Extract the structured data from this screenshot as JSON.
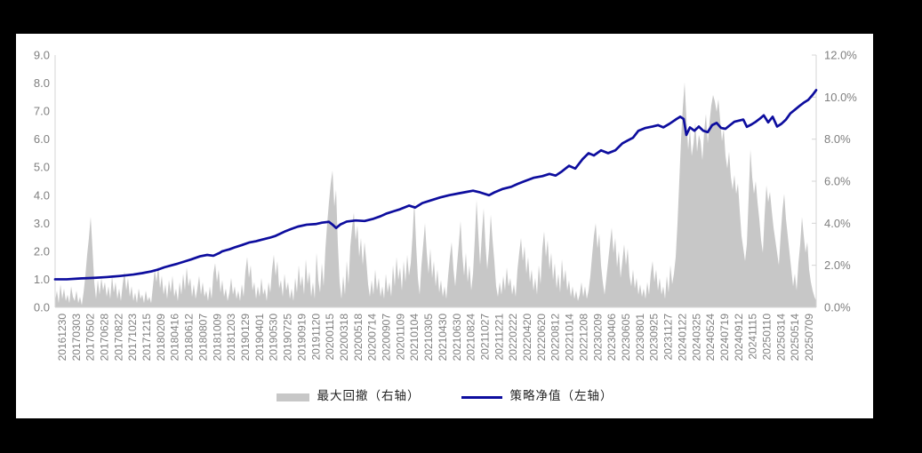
{
  "page": {
    "background_color": "#000000",
    "panel_color": "#ffffff"
  },
  "chart_data": {
    "type": "combo",
    "title": "",
    "grid": "off",
    "legend_position": "bottom-center",
    "legend": [
      {
        "label": "最大回撤（右轴）",
        "swatch": "area",
        "color": "#c7c7c7"
      },
      {
        "label": "策略净值（左轴）",
        "swatch": "line",
        "color": "#0d0d9e"
      }
    ],
    "left_axis": {
      "range": [
        0,
        9
      ],
      "tick_labels_top_to_bottom": [
        "9.0",
        "8.0",
        "7.0",
        "6.0",
        "5.0",
        "4.0",
        "3.0",
        "2.0",
        "1.0",
        "0.0"
      ],
      "label_color": "#7f7f7f"
    },
    "right_axis": {
      "range": [
        0,
        12
      ],
      "unit": "%",
      "tick_labels_top_to_bottom": [
        "12.0%",
        "10.0%",
        "8.0%",
        "6.0%",
        "4.0%",
        "2.0%",
        "0.0%"
      ],
      "label_color": "#7f7f7f"
    },
    "x_labels": [
      "20161230",
      "20170303",
      "20170502",
      "20170628",
      "20170822",
      "20171023",
      "20171215",
      "20180209",
      "20180416",
      "20180612",
      "20180807",
      "20181009",
      "20181203",
      "20190129",
      "20190401",
      "20190530",
      "20190725",
      "20190919",
      "20191120",
      "20200115",
      "20200318",
      "20200518",
      "20200714",
      "20200907",
      "20201109",
      "20210104",
      "20210305",
      "20210430",
      "20210630",
      "20210824",
      "20211027",
      "20211221",
      "20220222",
      "20220420",
      "20220620",
      "20220812",
      "20221014",
      "20221208",
      "20230209",
      "20230406",
      "20230605",
      "20230801",
      "20230925",
      "20231127",
      "20240122",
      "20240325",
      "20240524",
      "20240719",
      "20240912",
      "20241115",
      "20250110",
      "20250314",
      "20250514",
      "20250709"
    ],
    "axis_line_color": "#d4d4d4",
    "series": [
      {
        "name": "最大回撤（右轴）",
        "type": "area",
        "axis": "right",
        "unit": "%",
        "color": "#c7c7c7",
        "values": [
          0.3,
          0.8,
          0.2,
          1.1,
          0.4,
          0.9,
          0.3,
          0.6,
          0.2,
          1.0,
          0.5,
          0.3,
          0.8,
          0.2,
          0.5,
          0.1,
          0.7,
          1.5,
          2.5,
          3.3,
          4.3,
          2.8,
          1.2,
          0.4,
          1.3,
          0.6,
          1.4,
          0.8,
          1.2,
          0.5,
          1.0,
          0.4,
          1.5,
          0.7,
          1.2,
          0.4,
          0.9,
          0.3,
          1.1,
          1.7,
          0.8,
          1.4,
          0.5,
          1.0,
          0.3,
          0.7,
          0.2,
          0.9,
          0.4,
          0.6,
          0.2,
          0.8,
          0.3,
          0.5,
          0.2,
          1.0,
          1.8,
          1.2,
          2.0,
          0.9,
          1.5,
          0.6,
          1.1,
          0.4,
          1.3,
          0.7,
          1.5,
          0.5,
          0.9,
          0.3,
          1.2,
          0.6,
          1.6,
          0.8,
          1.9,
          1.0,
          1.4,
          0.5,
          1.1,
          0.4,
          0.9,
          1.5,
          0.6,
          1.2,
          0.5,
          0.8,
          0.3,
          1.0,
          0.4,
          1.6,
          2.1,
          1.2,
          1.8,
          0.7,
          1.3,
          0.5,
          0.9,
          0.3,
          0.7,
          1.4,
          0.6,
          1.0,
          0.4,
          0.8,
          0.3,
          1.1,
          0.5,
          1.7,
          2.4,
          1.4,
          2.0,
          0.8,
          1.2,
          0.4,
          1.0,
          0.5,
          1.4,
          0.6,
          0.9,
          0.3,
          1.2,
          0.7,
          1.8,
          2.5,
          1.5,
          2.2,
          0.9,
          1.3,
          0.5,
          1.6,
          0.8,
          1.2,
          0.4,
          0.9,
          0.3,
          1.4,
          0.7,
          2.0,
          1.0,
          1.5,
          0.6,
          2.3,
          1.1,
          1.7,
          0.5,
          1.2,
          0.4,
          2.6,
          1.3,
          0.7,
          2.1,
          1.0,
          2.8,
          4.0,
          5.0,
          5.9,
          6.5,
          4.8,
          5.6,
          3.0,
          1.2,
          0.4,
          1.5,
          0.6,
          2.2,
          1.1,
          2.9,
          3.8,
          4.5,
          3.2,
          3.9,
          2.4,
          3.3,
          2.0,
          3.1,
          2.2,
          1.1,
          0.5,
          1.3,
          0.6,
          1.8,
          0.8,
          1.4,
          0.5,
          1.0,
          0.4,
          1.6,
          0.7,
          1.2,
          0.5,
          2.0,
          1.0,
          2.4,
          1.3,
          1.9,
          0.8,
          2.2,
          1.2,
          2.5,
          1.5,
          2.1,
          3.4,
          5.1,
          3.0,
          1.4,
          0.6,
          2.0,
          3.0,
          4.0,
          2.6,
          1.6,
          2.8,
          1.4,
          2.2,
          1.0,
          1.8,
          0.7,
          1.3,
          0.5,
          1.0,
          0.4,
          1.5,
          2.4,
          3.1,
          1.8,
          1.0,
          2.0,
          3.0,
          4.1,
          2.5,
          1.5,
          2.6,
          1.2,
          2.0,
          0.8,
          1.6,
          3.2,
          5.1,
          3.5,
          2.0,
          3.5,
          4.7,
          3.0,
          1.8,
          2.8,
          4.4,
          3.2,
          2.2,
          1.0,
          0.5,
          1.2,
          0.6,
          1.5,
          0.8,
          1.9,
          1.0,
          1.4,
          0.6,
          1.1,
          0.5,
          1.8,
          2.6,
          3.3,
          2.2,
          2.9,
          1.6,
          2.4,
          1.2,
          1.8,
          0.8,
          1.4,
          0.6,
          2.0,
          1.1,
          2.8,
          3.6,
          2.4,
          3.2,
          1.8,
          2.6,
          1.3,
          2.1,
          0.9,
          1.6,
          0.7,
          2.3,
          1.2,
          1.8,
          0.8,
          1.3,
          0.5,
          1.0,
          0.4,
          0.8,
          0.3,
          0.6,
          1.2,
          0.5,
          1.0,
          0.4,
          0.8,
          1.5,
          2.5,
          3.4,
          4.0,
          2.8,
          3.5,
          2.0,
          1.2,
          0.6,
          1.4,
          2.2,
          3.0,
          3.8,
          2.6,
          3.3,
          1.9,
          2.7,
          1.4,
          2.2,
          3.0,
          2.0,
          2.8,
          1.5,
          1.0,
          1.8,
          0.9,
          1.4,
          0.6,
          1.1,
          0.5,
          0.9,
          0.4,
          1.2,
          0.6,
          1.6,
          2.2,
          1.2,
          1.8,
          0.8,
          1.4,
          0.6,
          1.0,
          0.4,
          1.5,
          0.7,
          2.0,
          1.1,
          1.6,
          2.4,
          4.0,
          6.0,
          8.0,
          9.5,
          10.7,
          9.0,
          7.5,
          8.5,
          7.2,
          7.8,
          8.8,
          7.4,
          8.2,
          7.9,
          7.0,
          8.4,
          9.2,
          7.8,
          8.8,
          9.6,
          10.1,
          9.8,
          9.3,
          9.9,
          8.9,
          7.9,
          8.5,
          7.2,
          6.6,
          7.4,
          6.2,
          5.6,
          6.3,
          5.4,
          5.9,
          4.6,
          3.4,
          2.8,
          2.2,
          3.0,
          5.2,
          7.5,
          6.2,
          5.4,
          6.0,
          5.0,
          4.2,
          3.2,
          2.6,
          4.4,
          5.8,
          5.0,
          5.5,
          4.6,
          3.8,
          3.2,
          2.6,
          2.0,
          3.4,
          4.6,
          5.4,
          4.2,
          3.4,
          2.6,
          1.8,
          1.0,
          1.6,
          0.8,
          2.1,
          3.0,
          4.3,
          3.4,
          2.6,
          3.1,
          1.8,
          1.2,
          0.8,
          0.5,
          0.3
        ]
      },
      {
        "name": "策略净值（左轴）",
        "type": "line",
        "axis": "left",
        "color": "#0d0d9e",
        "points": [
          [
            0.0,
            1.0
          ],
          [
            0.0152,
            1.0
          ],
          [
            0.0327,
            1.03
          ],
          [
            0.0502,
            1.05
          ],
          [
            0.0678,
            1.08
          ],
          [
            0.0853,
            1.12
          ],
          [
            0.1028,
            1.17
          ],
          [
            0.1145,
            1.22
          ],
          [
            0.1262,
            1.28
          ],
          [
            0.1355,
            1.35
          ],
          [
            0.1437,
            1.43
          ],
          [
            0.153,
            1.5
          ],
          [
            0.1612,
            1.56
          ],
          [
            0.1706,
            1.64
          ],
          [
            0.1787,
            1.71
          ],
          [
            0.1904,
            1.82
          ],
          [
            0.1998,
            1.87
          ],
          [
            0.2079,
            1.84
          ],
          [
            0.2161,
            1.94
          ],
          [
            0.2196,
            2.0
          ],
          [
            0.229,
            2.07
          ],
          [
            0.2371,
            2.15
          ],
          [
            0.2453,
            2.22
          ],
          [
            0.2547,
            2.31
          ],
          [
            0.264,
            2.36
          ],
          [
            0.2722,
            2.42
          ],
          [
            0.2815,
            2.48
          ],
          [
            0.2897,
            2.55
          ],
          [
            0.3014,
            2.7
          ],
          [
            0.3107,
            2.8
          ],
          [
            0.3189,
            2.88
          ],
          [
            0.3306,
            2.95
          ],
          [
            0.3423,
            2.97
          ],
          [
            0.3505,
            3.02
          ],
          [
            0.3598,
            3.05
          ],
          [
            0.3645,
            2.95
          ],
          [
            0.3692,
            2.83
          ],
          [
            0.375,
            2.96
          ],
          [
            0.3832,
            3.06
          ],
          [
            0.3949,
            3.1
          ],
          [
            0.4066,
            3.08
          ],
          [
            0.4183,
            3.16
          ],
          [
            0.4276,
            3.25
          ],
          [
            0.4358,
            3.35
          ],
          [
            0.4451,
            3.43
          ],
          [
            0.4533,
            3.5
          ],
          [
            0.465,
            3.63
          ],
          [
            0.4731,
            3.56
          ],
          [
            0.4825,
            3.72
          ],
          [
            0.4942,
            3.82
          ],
          [
            0.5058,
            3.92
          ],
          [
            0.5175,
            4.0
          ],
          [
            0.5292,
            4.06
          ],
          [
            0.5409,
            4.12
          ],
          [
            0.5491,
            4.16
          ],
          [
            0.5584,
            4.1
          ],
          [
            0.5701,
            4.0
          ],
          [
            0.5771,
            4.1
          ],
          [
            0.5876,
            4.22
          ],
          [
            0.5993,
            4.3
          ],
          [
            0.6075,
            4.4
          ],
          [
            0.6168,
            4.5
          ],
          [
            0.6285,
            4.62
          ],
          [
            0.6402,
            4.68
          ],
          [
            0.6495,
            4.76
          ],
          [
            0.6577,
            4.7
          ],
          [
            0.6659,
            4.85
          ],
          [
            0.6752,
            5.05
          ],
          [
            0.6834,
            4.95
          ],
          [
            0.6928,
            5.28
          ],
          [
            0.7009,
            5.5
          ],
          [
            0.7079,
            5.42
          ],
          [
            0.7173,
            5.6
          ],
          [
            0.7266,
            5.5
          ],
          [
            0.736,
            5.6
          ],
          [
            0.7453,
            5.85
          ],
          [
            0.7523,
            5.95
          ],
          [
            0.7593,
            6.05
          ],
          [
            0.7664,
            6.3
          ],
          [
            0.7757,
            6.4
          ],
          [
            0.785,
            6.45
          ],
          [
            0.7921,
            6.5
          ],
          [
            0.7991,
            6.42
          ],
          [
            0.8073,
            6.55
          ],
          [
            0.8154,
            6.7
          ],
          [
            0.8213,
            6.8
          ],
          [
            0.8259,
            6.72
          ],
          [
            0.8294,
            6.15
          ],
          [
            0.8341,
            6.42
          ],
          [
            0.84,
            6.3
          ],
          [
            0.8458,
            6.45
          ],
          [
            0.8516,
            6.3
          ],
          [
            0.8575,
            6.25
          ],
          [
            0.8633,
            6.5
          ],
          [
            0.8692,
            6.58
          ],
          [
            0.875,
            6.4
          ],
          [
            0.8808,
            6.37
          ],
          [
            0.8867,
            6.5
          ],
          [
            0.8925,
            6.62
          ],
          [
            0.8984,
            6.66
          ],
          [
            0.9042,
            6.7
          ],
          [
            0.9089,
            6.44
          ],
          [
            0.9147,
            6.52
          ],
          [
            0.9206,
            6.62
          ],
          [
            0.9264,
            6.74
          ],
          [
            0.9311,
            6.85
          ],
          [
            0.9369,
            6.6
          ],
          [
            0.9428,
            6.8
          ],
          [
            0.9486,
            6.45
          ],
          [
            0.9544,
            6.55
          ],
          [
            0.9603,
            6.7
          ],
          [
            0.9661,
            6.92
          ],
          [
            0.972,
            7.05
          ],
          [
            0.9778,
            7.18
          ],
          [
            0.9836,
            7.3
          ],
          [
            0.9895,
            7.4
          ],
          [
            0.9953,
            7.58
          ],
          [
            1.0,
            7.75
          ]
        ]
      }
    ]
  }
}
